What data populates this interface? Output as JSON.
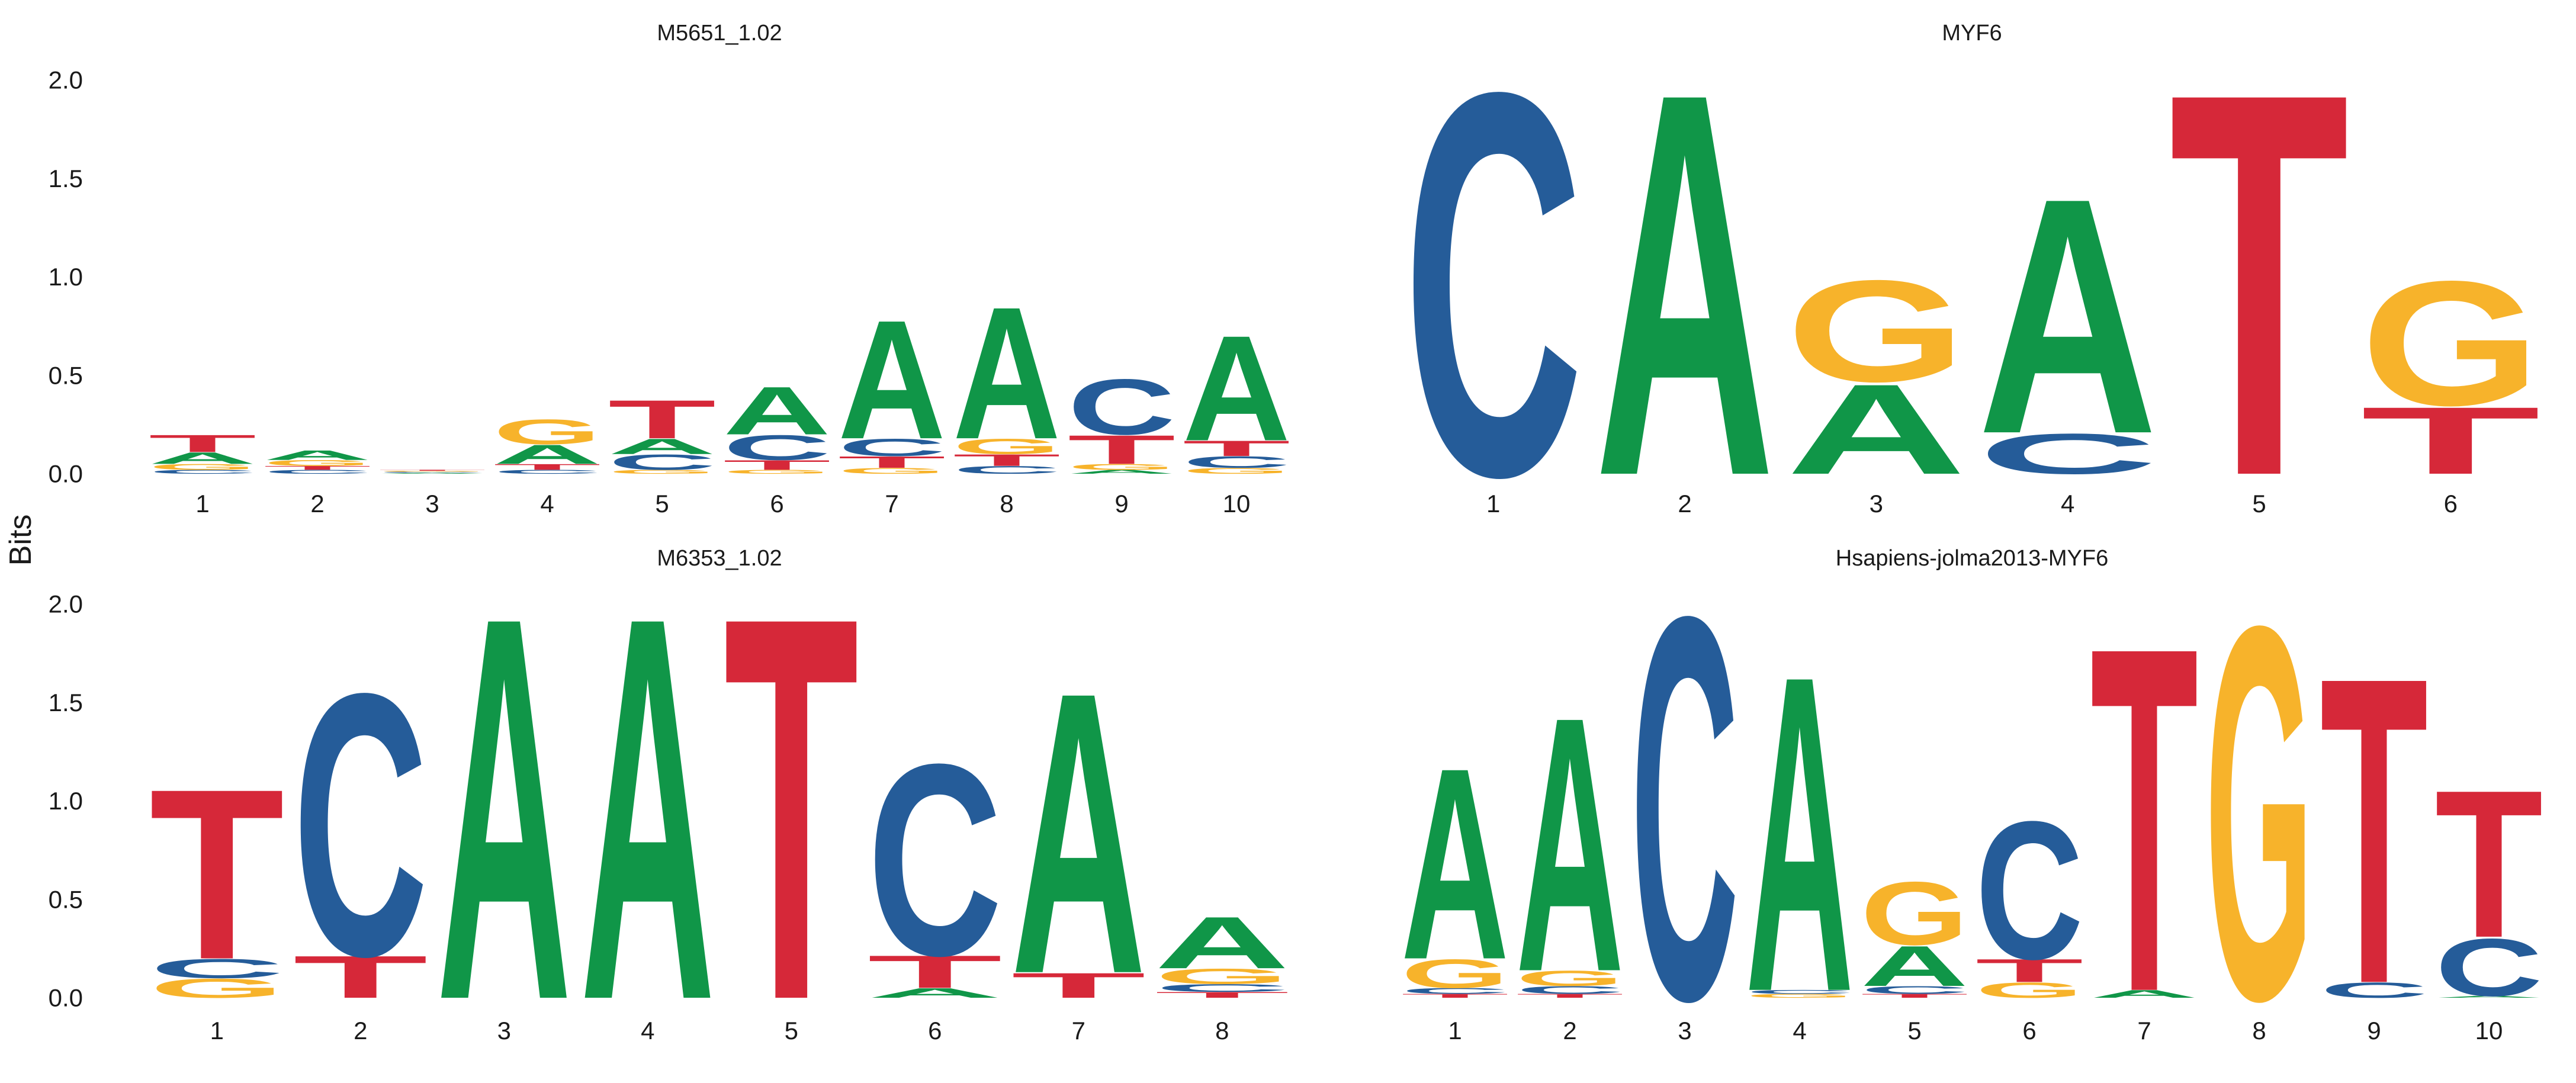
{
  "ylabel": "Bits",
  "colors": {
    "A": "#109648",
    "C": "#255C99",
    "G": "#F7B32B",
    "T": "#D62839"
  },
  "chart_data": [
    {
      "type": "sequence-logo",
      "title": "M5651_1.02",
      "ylabel": "Bits",
      "ylim": [
        0,
        2.0
      ],
      "yticks": [
        "0.0",
        "0.5",
        "1.0",
        "1.5",
        "2.0"
      ],
      "positions": [
        "1",
        "2",
        "3",
        "4",
        "5",
        "6",
        "7",
        "8",
        "9",
        "10"
      ],
      "stacks": [
        [
          [
            "C",
            0.02
          ],
          [
            "G",
            0.03
          ],
          [
            "A",
            0.06
          ],
          [
            "T",
            0.09
          ]
        ],
        [
          [
            "C",
            0.02
          ],
          [
            "T",
            0.02
          ],
          [
            "G",
            0.03
          ],
          [
            "A",
            0.05
          ]
        ],
        [
          [
            "A",
            0.005
          ],
          [
            "C",
            0.005
          ],
          [
            "G",
            0.005
          ],
          [
            "T",
            0.005
          ]
        ],
        [
          [
            "C",
            0.02
          ],
          [
            "T",
            0.03
          ],
          [
            "A",
            0.1
          ],
          [
            "G",
            0.13
          ]
        ],
        [
          [
            "G",
            0.02
          ],
          [
            "C",
            0.08
          ],
          [
            "A",
            0.08
          ],
          [
            "T",
            0.2
          ]
        ],
        [
          [
            "G",
            0.02
          ],
          [
            "T",
            0.05
          ],
          [
            "C",
            0.13
          ],
          [
            "A",
            0.25
          ]
        ],
        [
          [
            "G",
            0.03
          ],
          [
            "T",
            0.06
          ],
          [
            "C",
            0.09
          ],
          [
            "A",
            0.62
          ]
        ],
        [
          [
            "C",
            0.04
          ],
          [
            "T",
            0.06
          ],
          [
            "G",
            0.08
          ],
          [
            "A",
            0.69
          ]
        ],
        [
          [
            "A",
            0.02
          ],
          [
            "G",
            0.03
          ],
          [
            "T",
            0.15
          ],
          [
            "C",
            0.29
          ]
        ],
        [
          [
            "G",
            0.03
          ],
          [
            "C",
            0.06
          ],
          [
            "T",
            0.08
          ],
          [
            "A",
            0.55
          ]
        ]
      ]
    },
    {
      "type": "sequence-logo",
      "title": "MYF6",
      "ylabel": "Bits",
      "ylim": [
        0,
        2.0
      ],
      "yticks": [],
      "positions": [
        "1",
        "2",
        "3",
        "4",
        "5",
        "6"
      ],
      "stacks": [
        [
          [
            "C",
            2.0
          ]
        ],
        [
          [
            "A",
            2.0
          ]
        ],
        [
          [
            "A",
            0.47
          ],
          [
            "G",
            0.53
          ]
        ],
        [
          [
            "C",
            0.21
          ],
          [
            "A",
            1.23
          ]
        ],
        [
          [
            "T",
            2.0
          ]
        ],
        [
          [
            "T",
            0.35
          ],
          [
            "G",
            0.65
          ]
        ]
      ]
    },
    {
      "type": "sequence-logo",
      "title": "M6353_1.02",
      "ylabel": "Bits",
      "ylim": [
        0,
        2.0
      ],
      "yticks": [
        "0.0",
        "0.5",
        "1.0",
        "1.5",
        "2.0"
      ],
      "positions": [
        "1",
        "2",
        "3",
        "4",
        "5",
        "6",
        "7",
        "8"
      ],
      "stacks": [
        [
          [
            "G",
            0.1
          ],
          [
            "C",
            0.1
          ],
          [
            "T",
            0.89
          ]
        ],
        [
          [
            "T",
            0.22
          ],
          [
            "C",
            1.37
          ]
        ],
        [
          [
            "A",
            2.0
          ]
        ],
        [
          [
            "A",
            2.0
          ]
        ],
        [
          [
            "T",
            2.0
          ]
        ],
        [
          [
            "A",
            0.05
          ],
          [
            "T",
            0.17
          ],
          [
            "C",
            1.0
          ]
        ],
        [
          [
            "T",
            0.13
          ],
          [
            "A",
            1.47
          ]
        ],
        [
          [
            "T",
            0.03
          ],
          [
            "C",
            0.04
          ],
          [
            "G",
            0.08
          ],
          [
            "A",
            0.27
          ]
        ]
      ]
    },
    {
      "type": "sequence-logo",
      "title": "Hsapiens-jolma2013-MYF6",
      "ylabel": "Bits",
      "ylim": [
        0,
        2.0
      ],
      "yticks": [],
      "positions": [
        "1",
        "2",
        "3",
        "4",
        "5",
        "6",
        "7",
        "8",
        "9",
        "10"
      ],
      "stacks": [
        [
          [
            "T",
            0.02
          ],
          [
            "C",
            0.03
          ],
          [
            "G",
            0.15
          ],
          [
            "A",
            1.0
          ]
        ],
        [
          [
            "T",
            0.02
          ],
          [
            "C",
            0.04
          ],
          [
            "G",
            0.08
          ],
          [
            "A",
            1.33
          ]
        ],
        [
          [
            "C",
            2.0
          ]
        ],
        [
          [
            "G",
            0.02
          ],
          [
            "C",
            0.02
          ],
          [
            "A",
            1.65
          ]
        ],
        [
          [
            "T",
            0.02
          ],
          [
            "C",
            0.04
          ],
          [
            "A",
            0.21
          ],
          [
            "G",
            0.33
          ]
        ],
        [
          [
            "G",
            0.08
          ],
          [
            "T",
            0.12
          ],
          [
            "C",
            0.72
          ]
        ],
        [
          [
            "A",
            0.04
          ],
          [
            "T",
            1.8
          ]
        ],
        [
          [
            "G",
            1.95
          ]
        ],
        [
          [
            "C",
            0.08
          ],
          [
            "T",
            1.6
          ]
        ],
        [
          [
            "A",
            0.01
          ],
          [
            "C",
            0.3
          ],
          [
            "T",
            0.77
          ]
        ]
      ]
    }
  ]
}
